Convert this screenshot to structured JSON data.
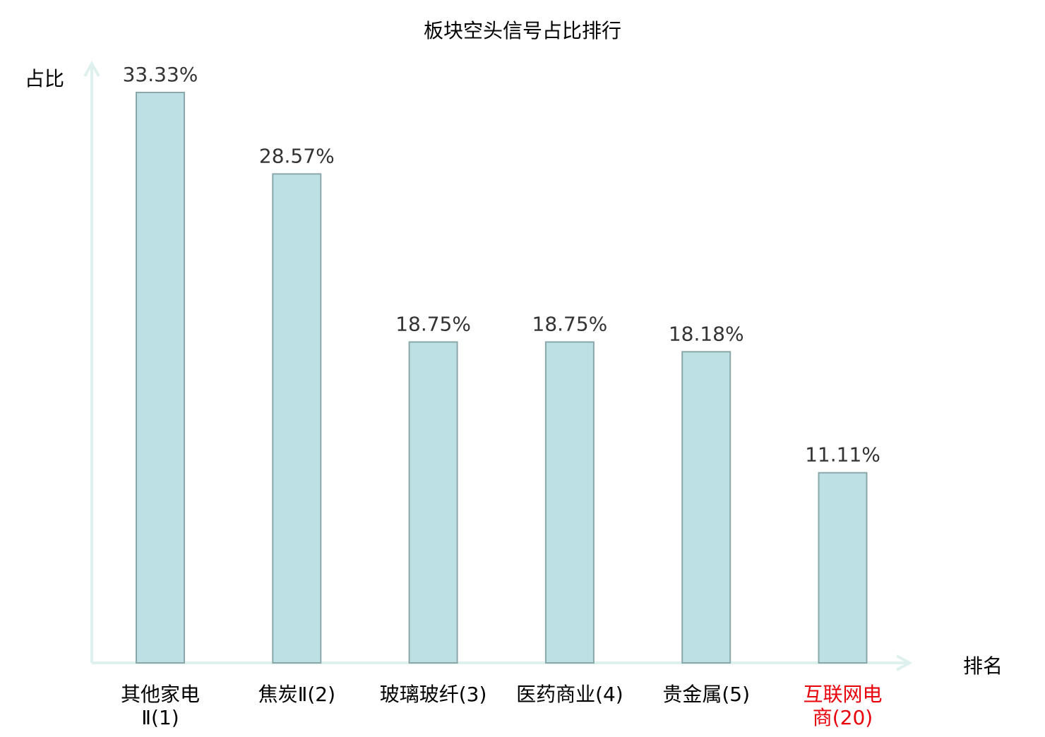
{
  "chart_data": {
    "type": "bar",
    "title": "板块空头信号占比排行",
    "xlabel": "排名",
    "ylabel": "占比",
    "ylim": [
      0,
      33.33
    ],
    "grid": false,
    "categories": [
      {
        "lines": [
          "其他家电",
          "Ⅱ(1)"
        ],
        "highlight": false
      },
      {
        "lines": [
          "焦炭Ⅱ(2)"
        ],
        "highlight": false
      },
      {
        "lines": [
          "玻璃玻纤(3)"
        ],
        "highlight": false
      },
      {
        "lines": [
          "医药商业(4)"
        ],
        "highlight": false
      },
      {
        "lines": [
          "贵金属(5)"
        ],
        "highlight": false
      },
      {
        "lines": [
          "互联网电",
          "商(20)"
        ],
        "highlight": true
      }
    ],
    "values": [
      33.33,
      28.57,
      18.75,
      18.75,
      18.18,
      11.11
    ],
    "labels": [
      "33.33%",
      "28.57%",
      "18.75%",
      "18.75%",
      "18.18%",
      "11.11%"
    ],
    "colors": {
      "bar": "#bce0e3",
      "bar_edge": "#8aa8aa",
      "axis": "#dff1ef",
      "highlight": "#e8000b",
      "text": "#000000",
      "value_text": "#333333"
    }
  }
}
